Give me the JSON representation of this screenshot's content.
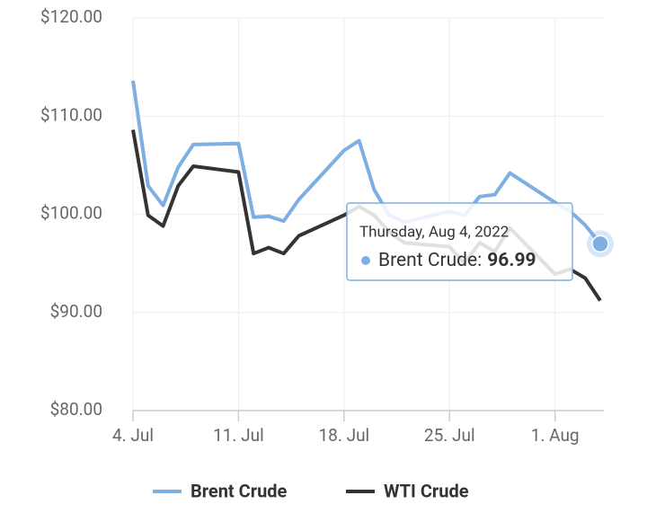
{
  "chart_data": {
    "type": "line",
    "x": [
      "2022-07-04",
      "2022-07-05",
      "2022-07-06",
      "2022-07-07",
      "2022-07-08",
      "2022-07-11",
      "2022-07-12",
      "2022-07-13",
      "2022-07-14",
      "2022-07-15",
      "2022-07-18",
      "2022-07-19",
      "2022-07-20",
      "2022-07-21",
      "2022-07-22",
      "2022-07-25",
      "2022-07-26",
      "2022-07-27",
      "2022-07-28",
      "2022-07-29",
      "2022-08-01",
      "2022-08-02",
      "2022-08-03",
      "2022-08-04"
    ],
    "series": [
      {
        "name": "Brent Crude",
        "color": "#7eafe3",
        "values": [
          113.6,
          102.9,
          100.9,
          104.8,
          107.1,
          107.2,
          99.7,
          99.8,
          99.3,
          101.5,
          106.5,
          107.5,
          102.5,
          99.9,
          99.2,
          100.3,
          99.9,
          101.8,
          102.0,
          104.2,
          101.2,
          100.3,
          98.9,
          96.99
        ]
      },
      {
        "name": "WTI Crude",
        "color": "#333333",
        "values": [
          108.6,
          99.9,
          98.8,
          102.9,
          104.9,
          104.3,
          96.0,
          96.6,
          96.0,
          97.8,
          99.9,
          100.8,
          99.9,
          98.2,
          97.1,
          96.7,
          95.0,
          97.1,
          96.2,
          98.6,
          93.9,
          94.4,
          93.5,
          91.2
        ]
      }
    ],
    "xlim": [
      "2022-07-04",
      "2022-08-04"
    ],
    "xticks": [
      {
        "value": "2022-07-04",
        "label": "4. Jul"
      },
      {
        "value": "2022-07-11",
        "label": "11. Jul"
      },
      {
        "value": "2022-07-18",
        "label": "18. Jul"
      },
      {
        "value": "2022-07-25",
        "label": "25. Jul"
      },
      {
        "value": "2022-08-01",
        "label": "1. Aug"
      }
    ],
    "ylim": [
      80,
      120
    ],
    "yticks": [
      {
        "value": 80,
        "label": "$80.00"
      },
      {
        "value": 90,
        "label": "$90.00"
      },
      {
        "value": 100,
        "label": "$100.00"
      },
      {
        "value": 110,
        "label": "$110.00"
      },
      {
        "value": 120,
        "label": "$120.00"
      }
    ],
    "grid": true,
    "legend": "bottom",
    "tooltip": {
      "date_label": "Thursday, Aug 4, 2022",
      "series_label": "Brent Crude:"
    }
  }
}
